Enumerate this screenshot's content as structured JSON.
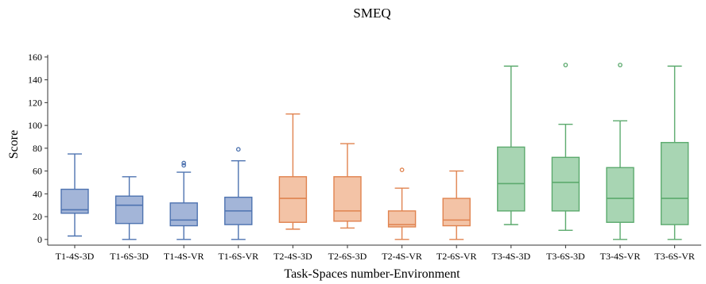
{
  "chart_data": {
    "type": "box",
    "title": "SMEQ",
    "xlabel": "Task-Spaces number-Environment",
    "ylabel": "Score",
    "ylim": [
      -5,
      162
    ],
    "yticks": [
      0,
      20,
      40,
      60,
      80,
      100,
      120,
      140,
      160
    ],
    "grid": false,
    "colors": {
      "T1": {
        "fill": "#a3b5d8",
        "stroke": "#4e73b0"
      },
      "T2": {
        "fill": "#f3c3a6",
        "stroke": "#e0834f"
      },
      "T3": {
        "fill": "#a8d5b3",
        "stroke": "#5caa6e"
      }
    },
    "boxes": [
      {
        "label": "T1-4S-3D",
        "group": "T1",
        "min": 3,
        "q1": 23,
        "median": 26,
        "q3": 44,
        "max": 75,
        "outliers": []
      },
      {
        "label": "T1-6S-3D",
        "group": "T1",
        "min": 0,
        "q1": 14,
        "median": 30,
        "q3": 38,
        "max": 55,
        "outliers": []
      },
      {
        "label": "T1-4S-VR",
        "group": "T1",
        "min": 0,
        "q1": 12,
        "median": 17,
        "q3": 32,
        "max": 59,
        "outliers": [
          65,
          67
        ]
      },
      {
        "label": "T1-6S-VR",
        "group": "T1",
        "min": 0,
        "q1": 13,
        "median": 25,
        "q3": 37,
        "max": 69,
        "outliers": [
          79
        ]
      },
      {
        "label": "T2-4S-3D",
        "group": "T2",
        "min": 9,
        "q1": 15,
        "median": 36,
        "q3": 55,
        "max": 110,
        "outliers": []
      },
      {
        "label": "T2-6S-3D",
        "group": "T2",
        "min": 10,
        "q1": 16,
        "median": 25,
        "q3": 55,
        "max": 84,
        "outliers": []
      },
      {
        "label": "T2-4S-VR",
        "group": "T2",
        "min": 0,
        "q1": 11,
        "median": 13,
        "q3": 25,
        "max": 45,
        "outliers": [
          61
        ]
      },
      {
        "label": "T2-6S-VR",
        "group": "T2",
        "min": 0,
        "q1": 12,
        "median": 17,
        "q3": 36,
        "max": 60,
        "outliers": []
      },
      {
        "label": "T3-4S-3D",
        "group": "T3",
        "min": 13,
        "q1": 25,
        "median": 49,
        "q3": 81,
        "max": 152,
        "outliers": []
      },
      {
        "label": "T3-6S-3D",
        "group": "T3",
        "min": 8,
        "q1": 25,
        "median": 50,
        "q3": 72,
        "max": 101,
        "outliers": [
          153
        ]
      },
      {
        "label": "T3-4S-VR",
        "group": "T3",
        "min": 0,
        "q1": 15,
        "median": 36,
        "q3": 63,
        "max": 104,
        "outliers": [
          153
        ]
      },
      {
        "label": "T3-6S-VR",
        "group": "T3",
        "min": 0,
        "q1": 13,
        "median": 36,
        "q3": 85,
        "max": 152,
        "outliers": []
      }
    ]
  }
}
